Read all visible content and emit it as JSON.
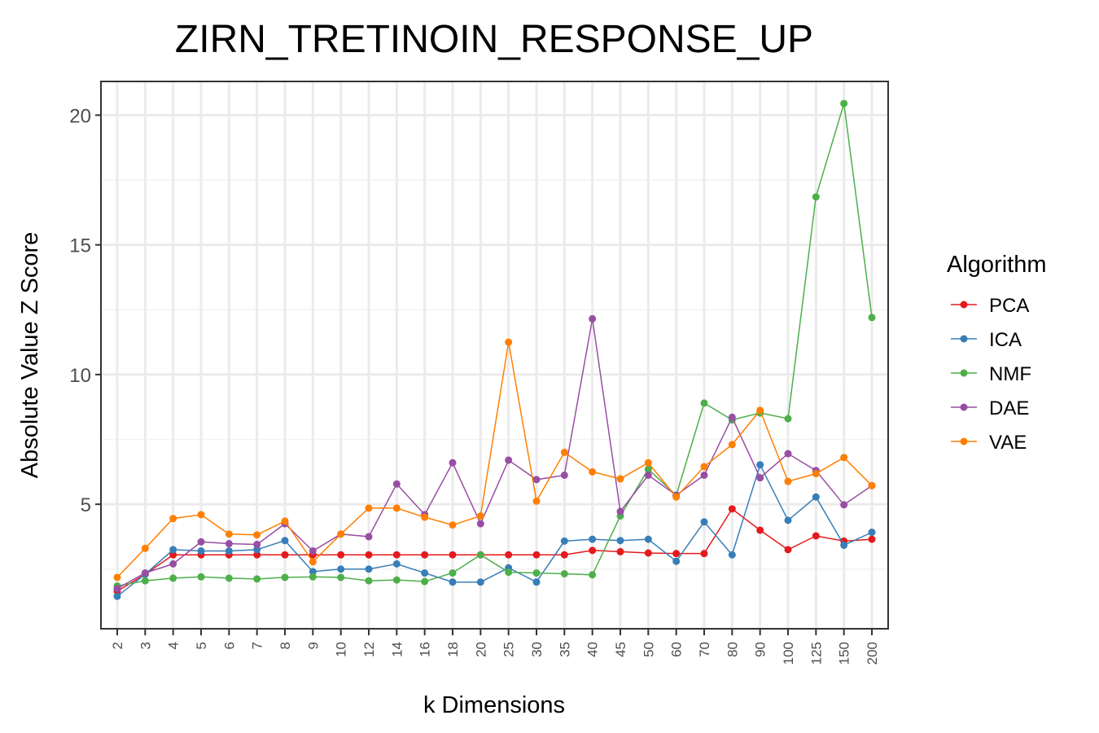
{
  "chart_data": {
    "type": "line",
    "title": "ZIRN_TRETINOIN_RESPONSE_UP",
    "xlabel": "k Dimensions",
    "ylabel": "Absolute Value Z Score",
    "categories": [
      "2",
      "3",
      "4",
      "5",
      "6",
      "7",
      "8",
      "9",
      "10",
      "12",
      "14",
      "16",
      "18",
      "20",
      "25",
      "30",
      "35",
      "40",
      "45",
      "50",
      "60",
      "70",
      "80",
      "90",
      "100",
      "125",
      "150",
      "200"
    ],
    "ylim": [
      0.2,
      21.3
    ],
    "yticks": [
      5,
      10,
      15,
      20
    ],
    "grid": true,
    "legend": {
      "title": "Algorithm",
      "placement": "right"
    },
    "series": [
      {
        "name": "PCA",
        "color": "#E41A1C",
        "values": [
          1.65,
          2.3,
          3.05,
          3.05,
          3.05,
          3.05,
          3.05,
          3.05,
          3.05,
          3.05,
          3.05,
          3.05,
          3.05,
          3.05,
          3.05,
          3.05,
          3.05,
          3.22,
          3.17,
          3.12,
          3.1,
          3.1,
          4.82,
          4.0,
          3.25,
          3.78,
          3.58,
          3.65
        ]
      },
      {
        "name": "ICA",
        "color": "#377EB8",
        "values": [
          1.45,
          2.3,
          3.25,
          3.2,
          3.2,
          3.25,
          3.6,
          2.4,
          2.5,
          2.5,
          2.7,
          2.35,
          2.0,
          2.0,
          2.55,
          2.0,
          3.58,
          3.65,
          3.6,
          3.65,
          2.8,
          4.32,
          3.05,
          6.52,
          4.38,
          5.28,
          3.42,
          3.92
        ]
      },
      {
        "name": "NMF",
        "color": "#4DAF4A",
        "values": [
          1.85,
          2.05,
          2.15,
          2.2,
          2.15,
          2.12,
          2.18,
          2.2,
          2.18,
          2.05,
          2.08,
          2.02,
          2.35,
          3.05,
          2.38,
          2.35,
          2.32,
          2.28,
          4.55,
          6.35,
          5.35,
          8.9,
          8.25,
          8.52,
          8.3,
          16.85,
          20.45,
          12.2
        ]
      },
      {
        "name": "DAE",
        "color": "#984EA3",
        "values": [
          1.75,
          2.35,
          2.7,
          3.55,
          3.48,
          3.45,
          4.25,
          3.2,
          3.85,
          3.75,
          5.78,
          4.6,
          6.6,
          4.25,
          6.7,
          5.95,
          6.12,
          12.15,
          4.72,
          6.12,
          5.35,
          6.12,
          8.35,
          6.02,
          6.95,
          6.3,
          4.98,
          5.72
        ]
      },
      {
        "name": "VAE",
        "color": "#FF7F00",
        "values": [
          2.18,
          3.3,
          4.45,
          4.6,
          3.85,
          3.82,
          4.35,
          2.78,
          3.85,
          4.85,
          4.85,
          4.5,
          4.2,
          4.55,
          11.25,
          5.12,
          7.0,
          6.25,
          5.98,
          6.6,
          5.28,
          6.45,
          7.3,
          8.62,
          5.88,
          6.18,
          6.8,
          5.72
        ]
      }
    ]
  }
}
